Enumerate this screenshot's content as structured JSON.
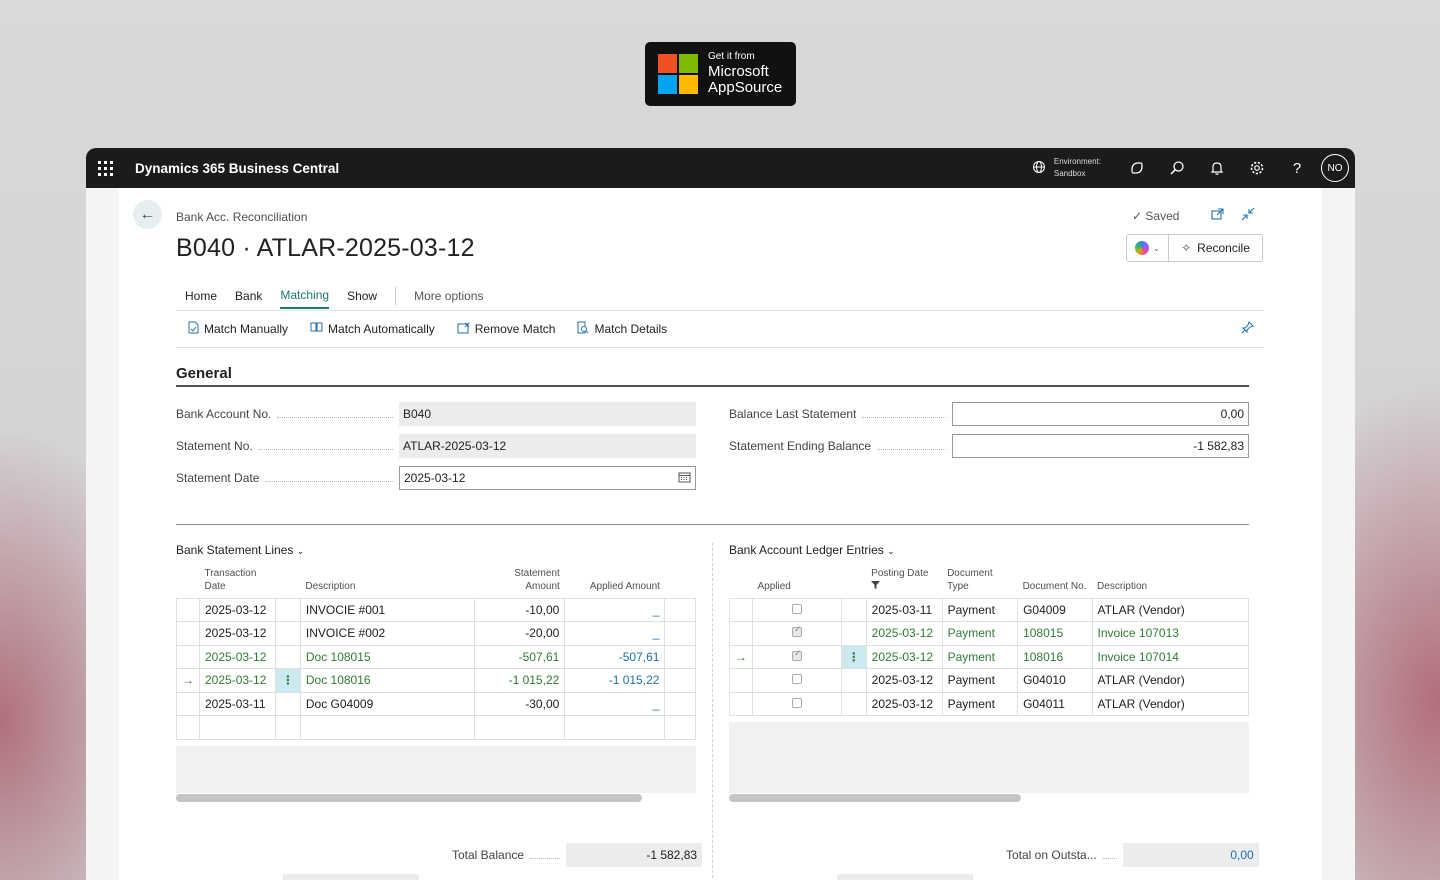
{
  "badge": {
    "small": "Get it from",
    "line1": "Microsoft",
    "line2": "AppSource",
    "logo_colors": [
      "#f25022",
      "#7fba00",
      "#00a4ef",
      "#ffb900"
    ]
  },
  "topbar": {
    "app_title": "Dynamics 365 Business Central",
    "environment_label": "Environment:",
    "environment_value": "Sandbox",
    "avatar_initials": "NO"
  },
  "page": {
    "breadcrumb": "Bank Acc. Reconciliation",
    "title": "B040 · ATLAR-2025-03-12",
    "saved_status": "Saved",
    "reconcile_label": "Reconcile"
  },
  "tabs": [
    {
      "label": "Home"
    },
    {
      "label": "Bank"
    },
    {
      "label": "Matching",
      "active": true
    },
    {
      "label": "Show"
    }
  ],
  "more_options": "More options",
  "actions": [
    {
      "label": "Match Manually",
      "icon": "document-icon"
    },
    {
      "label": "Match Automatically",
      "icon": "match-auto-icon"
    },
    {
      "label": "Remove Match",
      "icon": "remove-match-icon"
    },
    {
      "label": "Match Details",
      "icon": "match-details-icon"
    }
  ],
  "general": {
    "title": "General",
    "bank_account_no_label": "Bank Account No.",
    "bank_account_no": "B040",
    "statement_no_label": "Statement No.",
    "statement_no": "ATLAR-2025-03-12",
    "statement_date_label": "Statement Date",
    "statement_date": "2025-03-12",
    "balance_last_label": "Balance Last Statement",
    "balance_last": "0,00",
    "ending_balance_label": "Statement Ending Balance",
    "ending_balance": "-1 582,83"
  },
  "bank_lines": {
    "title": "Bank Statement Lines",
    "headers": [
      "Transaction Date",
      "Description",
      "Statement Amount",
      "Applied Amount"
    ],
    "rows": [
      {
        "date": "2025-03-12",
        "desc": "INVOCIE #001",
        "amount": "-10,00",
        "applied": "_",
        "matched": false
      },
      {
        "date": "2025-03-12",
        "desc": "INVOICE #002",
        "amount": "-20,00",
        "applied": "_",
        "matched": false
      },
      {
        "date": "2025-03-12",
        "desc": "Doc 108015",
        "amount": "-507,61",
        "applied": "-507,61",
        "matched": true
      },
      {
        "date": "2025-03-12",
        "desc": "Doc 108016",
        "amount": "-1 015,22",
        "applied": "-1 015,22",
        "matched": true,
        "current": true
      },
      {
        "date": "2025-03-11",
        "desc": "Doc G04009",
        "amount": "-30,00",
        "applied": "_",
        "matched": false
      }
    ]
  },
  "ledger": {
    "title": "Bank Account Ledger Entries",
    "headers": [
      "Applied",
      "Posting Date",
      "Document Type",
      "Document No.",
      "Description"
    ],
    "rows": [
      {
        "applied": false,
        "date": "2025-03-11",
        "type": "Payment",
        "doc_no": "G04009",
        "desc": "ATLAR (Vendor)",
        "matched": false
      },
      {
        "applied": true,
        "date": "2025-03-12",
        "type": "Payment",
        "doc_no": "108015",
        "desc": "Invoice 107013",
        "matched": true
      },
      {
        "applied": true,
        "date": "2025-03-12",
        "type": "Payment",
        "doc_no": "108016",
        "desc": "Invoice 107014",
        "matched": true,
        "current": true
      },
      {
        "applied": false,
        "date": "2025-03-12",
        "type": "Payment",
        "doc_no": "G04010",
        "desc": "ATLAR (Vendor)",
        "matched": false
      },
      {
        "applied": false,
        "date": "2025-03-12",
        "type": "Payment",
        "doc_no": "G04011",
        "desc": "ATLAR (Vendor)",
        "matched": false
      }
    ]
  },
  "totals": {
    "total_balance_label": "Total Balance",
    "total_balance": "-1 582,83",
    "total_outstanding_label": "Total on Outsta...",
    "total_outstanding": "0,00"
  },
  "colors": {
    "accent": "#1b7a6e",
    "link_blue": "#1f6fb0",
    "matched_green": "#2e7d32",
    "topbar": "#1b1b1b"
  }
}
